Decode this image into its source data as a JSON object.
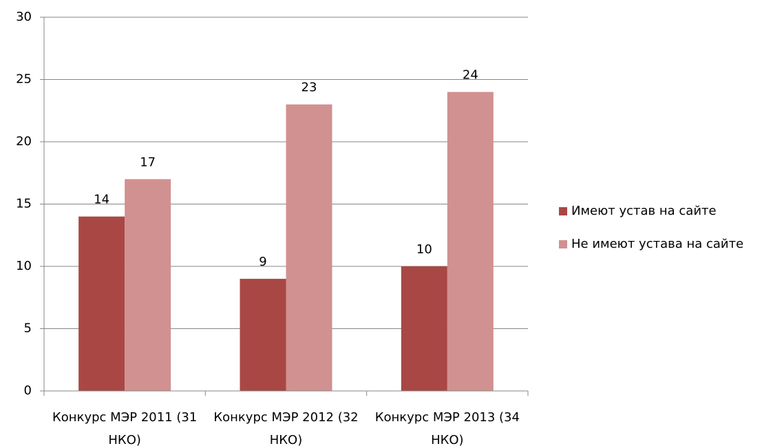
{
  "chart_data": {
    "type": "bar",
    "categories": [
      "Конкурс МЭР 2011 (31 НКО)",
      "Конкурс МЭР 2012 (32 НКО)",
      "Конкурс МЭР 2013 (34 НКО)"
    ],
    "series": [
      {
        "name": "Имеют устав на сайте",
        "color": "#a94744",
        "values": [
          14,
          9,
          10
        ]
      },
      {
        "name": "Не имеют устава на сайте",
        "color": "#d19190",
        "values": [
          17,
          23,
          24
        ]
      }
    ],
    "ylim": [
      0,
      30
    ],
    "yticks": [
      0,
      5,
      10,
      15,
      20,
      25,
      30
    ],
    "grid": true,
    "legend": "right"
  }
}
